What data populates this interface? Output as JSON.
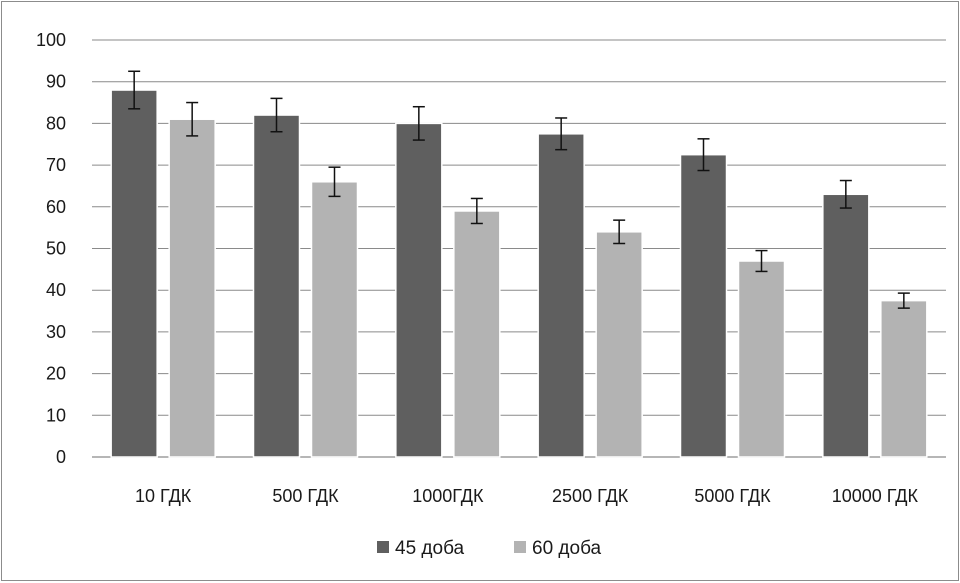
{
  "chart_data": {
    "type": "bar",
    "title": "",
    "xlabel": "",
    "ylabel": "",
    "categories": [
      "10 ГДК",
      "500 ГДК",
      "1000ГДК",
      "2500 ГДК",
      "5000 ГДК",
      "10000 ГДК"
    ],
    "series": [
      {
        "name": "45 доба",
        "color": "#5f5f5f",
        "values": [
          88,
          82,
          80,
          77.5,
          72.5,
          63
        ],
        "error": [
          4.5,
          4,
          4,
          3.8,
          3.8,
          3.3
        ]
      },
      {
        "name": "60 доба",
        "color": "#b3b3b3",
        "values": [
          81,
          66,
          59,
          54,
          47,
          37.5
        ],
        "error": [
          4,
          3.5,
          3,
          2.8,
          2.5,
          1.8
        ]
      }
    ],
    "ylim": [
      0,
      100
    ],
    "yticks": [
      0,
      10,
      20,
      30,
      40,
      50,
      60,
      70,
      80,
      90,
      100
    ],
    "grid": true,
    "legend": "bottom"
  }
}
